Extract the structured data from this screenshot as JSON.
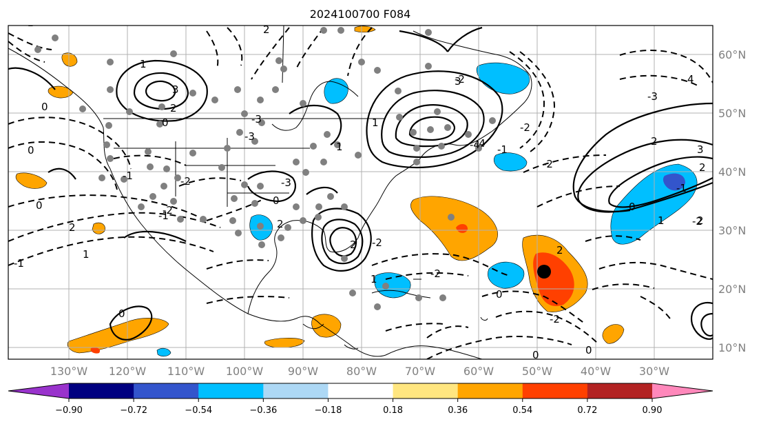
{
  "title": "2024100700 F084",
  "lat_labels": [
    "60°N",
    "50°N",
    "40°N",
    "30°N",
    "20°N",
    "10°N"
  ],
  "lon_labels": [
    "130°W",
    "120°W",
    "110°W",
    "100°W",
    "90°W",
    "80°W",
    "70°W",
    "60°W",
    "50°W",
    "40°W",
    "30°W"
  ],
  "colorbar": {
    "ticks": [
      "−0.90",
      "−0.72",
      "−0.54",
      "−0.36",
      "−0.18",
      "0.18",
      "0.36",
      "0.54",
      "0.72",
      "0.90"
    ],
    "colors": [
      "#9933cc",
      "#000080",
      "#3355cc",
      "#00bfff",
      "#add8f5",
      "#ffffff",
      "#ffe680",
      "#ffa500",
      "#ff4000",
      "#b22222",
      "#ff88bb"
    ]
  },
  "contour_labels": [
    "1",
    "3",
    "2",
    "0",
    "-3",
    "-2",
    "-1",
    "2",
    "0",
    "-4",
    "3",
    "-3",
    "2",
    "1",
    "0",
    "-2",
    "-1",
    "2",
    "-2",
    "2",
    "0",
    "-2",
    "0",
    "-1",
    "1",
    "0",
    "-2",
    "2",
    "4",
    "-3",
    "3",
    "-2",
    "2",
    "1",
    "0",
    "2",
    "1",
    "-1",
    "0",
    "0",
    "-2",
    "-1",
    "1",
    "2",
    "-2",
    "0",
    "-1",
    "-2",
    "-4",
    "-3"
  ]
}
